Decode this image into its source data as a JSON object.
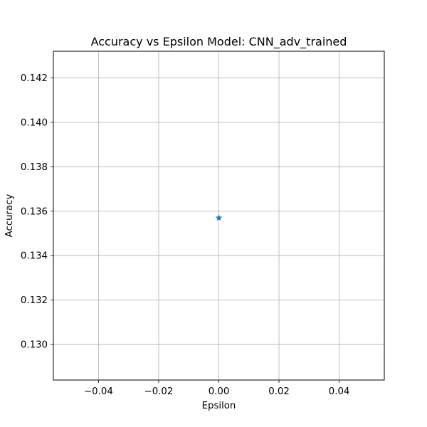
{
  "chart_data": {
    "type": "scatter",
    "title": "Accuracy vs Epsilon Model: CNN_adv_trained",
    "xlabel": "Epsilon",
    "ylabel": "Accuracy",
    "xlim": [
      -0.055,
      0.055
    ],
    "ylim": [
      0.1284,
      0.1432
    ],
    "xticks": [
      -0.04,
      -0.02,
      0.0,
      0.02,
      0.04
    ],
    "xtick_labels": [
      "−0.04",
      "−0.02",
      "0.00",
      "0.02",
      "0.04"
    ],
    "yticks": [
      0.13,
      0.132,
      0.134,
      0.136,
      0.138,
      0.14,
      0.142
    ],
    "ytick_labels": [
      "0.130",
      "0.132",
      "0.134",
      "0.136",
      "0.138",
      "0.140",
      "0.142"
    ],
    "grid": true,
    "series": [
      {
        "marker": "star",
        "color": "#1f77b4",
        "points": [
          {
            "x": 0.0,
            "y": 0.1357
          }
        ]
      }
    ]
  }
}
